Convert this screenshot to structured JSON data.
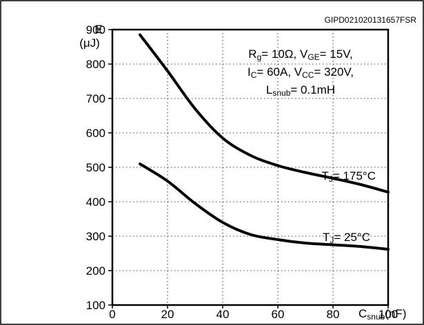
{
  "chart_data": {
    "type": "line",
    "code": "GIPD021020131657FSR",
    "y_axis": {
      "label": "E",
      "unit": "(μJ)",
      "range": [
        100,
        900
      ],
      "ticks": [
        100,
        200,
        300,
        400,
        500,
        600,
        700,
        800,
        900
      ]
    },
    "x_axis": {
      "label_main": "C",
      "label_sub": "snub",
      "label_unit": "(nF)",
      "range": [
        0,
        100
      ],
      "ticks": [
        0,
        20,
        40,
        60,
        80,
        100
      ]
    },
    "grid": true,
    "conditions": [
      [
        {
          "t": "R"
        },
        {
          "t": "g",
          "sub": true
        },
        {
          "t": "= 10Ω, V"
        },
        {
          "t": "GE",
          "sub": true
        },
        {
          "t": "= 15V,"
        }
      ],
      [
        {
          "t": "I"
        },
        {
          "t": "C",
          "sub": true
        },
        {
          "t": "= 60A, V"
        },
        {
          "t": "CC",
          "sub": true
        },
        {
          "t": "= 320V,"
        }
      ],
      [
        {
          "t": "L"
        },
        {
          "t": "snub",
          "sub": true
        },
        {
          "t": "= 0.1mH"
        }
      ]
    ],
    "series": [
      {
        "label": [
          {
            "t": "T"
          },
          {
            "t": "J",
            "sub": true
          },
          {
            "t": "= 175°C"
          }
        ],
        "points": [
          [
            10,
            885
          ],
          [
            20,
            780
          ],
          [
            30,
            670
          ],
          [
            40,
            585
          ],
          [
            50,
            535
          ],
          [
            60,
            505
          ],
          [
            70,
            485
          ],
          [
            80,
            468
          ],
          [
            90,
            450
          ],
          [
            100,
            428
          ]
        ]
      },
      {
        "label": [
          {
            "t": "T"
          },
          {
            "t": "J",
            "sub": true
          },
          {
            "t": "= 25°C"
          }
        ],
        "points": [
          [
            10,
            510
          ],
          [
            20,
            460
          ],
          [
            30,
            395
          ],
          [
            40,
            340
          ],
          [
            50,
            305
          ],
          [
            60,
            290
          ],
          [
            70,
            280
          ],
          [
            80,
            275
          ],
          [
            90,
            270
          ],
          [
            100,
            262
          ]
        ]
      }
    ]
  }
}
